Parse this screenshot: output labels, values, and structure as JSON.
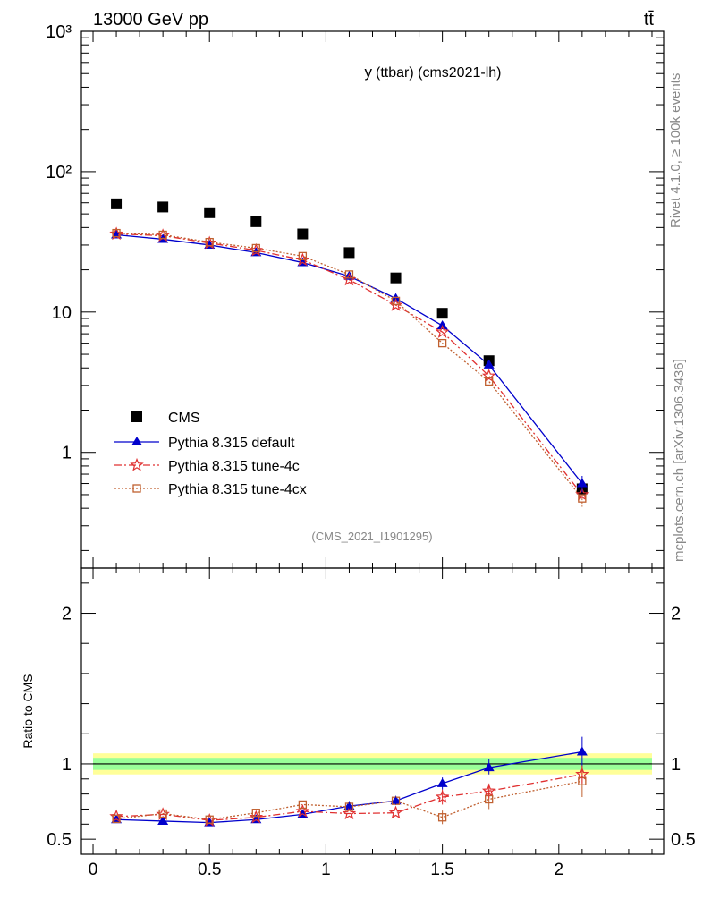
{
  "header": {
    "energy_label": "13000 GeV pp",
    "process_label": "tt̄",
    "plot_title_var": "y",
    "plot_title_rest": "(ttbar) (cms2021-lh)",
    "analysis_label": "(CMS_2021_I1901295)",
    "rivet_label": "Rivet 4.1.0, ≥ 100k events",
    "source_label": "mcplots.cern.ch [arXiv:1306.3436]"
  },
  "chart_data": [
    {
      "type": "scatter",
      "title": "y(ttbar) (cms2021-lh)",
      "xlabel": "",
      "ylabel": "",
      "yscale": "log",
      "xlim": [
        -0.05,
        2.45
      ],
      "ylim": [
        0.15,
        1000
      ],
      "ytick_labels": [
        "1",
        "10",
        "10²",
        "10³"
      ],
      "x": [
        0.1,
        0.3,
        0.5,
        0.7,
        0.9,
        1.1,
        1.3,
        1.5,
        1.7,
        2.1
      ],
      "legend_position": "middle-left",
      "series": [
        {
          "name": "CMS",
          "color": "#000000",
          "marker": "square",
          "line": "none",
          "values": [
            59,
            56,
            51,
            44,
            36,
            26.5,
            17.5,
            9.8,
            4.5,
            0.55
          ]
        },
        {
          "name": "Pythia 8.315 default",
          "color": "#0000cc",
          "marker": "triangle",
          "line": "solid",
          "values": [
            35.5,
            33,
            30,
            26.5,
            22.5,
            18,
            12.5,
            8,
            4.2,
            0.6
          ]
        },
        {
          "name": "Pythia 8.315 tune-4c",
          "color": "#e03030",
          "marker": "star",
          "line": "dashdot",
          "values": [
            36,
            35,
            31,
            27.5,
            23.5,
            17,
            11.2,
            7.2,
            3.5,
            0.5
          ]
        },
        {
          "name": "Pythia 8.315 tune-4cx",
          "color": "#c06030",
          "marker": "open-square",
          "line": "dotted",
          "values": [
            36.5,
            35.5,
            31.5,
            28.5,
            25,
            18.5,
            12,
            6,
            3.2,
            0.47
          ]
        }
      ]
    },
    {
      "type": "scatter",
      "title": "",
      "xlabel": "",
      "ylabel": "Ratio to CMS",
      "xlim": [
        -0.05,
        2.45
      ],
      "ylim": [
        0.4,
        2.3
      ],
      "x_tick_labels": [
        "0",
        "0.5",
        "1",
        "1.5",
        "2"
      ],
      "y_tick_labels": [
        "0.5",
        "1",
        "2"
      ],
      "x": [
        0.1,
        0.3,
        0.5,
        0.7,
        0.9,
        1.1,
        1.3,
        1.5,
        1.7,
        2.1
      ],
      "band_yellow": [
        0.93,
        1.07
      ],
      "band_green": [
        0.96,
        1.04
      ],
      "series": [
        {
          "name": "Pythia 8.315 default",
          "color": "#0000cc",
          "marker": "triangle",
          "values": [
            0.63,
            0.62,
            0.61,
            0.63,
            0.665,
            0.72,
            0.755,
            0.87,
            0.975,
            1.08
          ]
        },
        {
          "name": "Pythia 8.315 tune-4c",
          "color": "#e03030",
          "marker": "star",
          "values": [
            0.65,
            0.665,
            0.625,
            0.645,
            0.685,
            0.67,
            0.675,
            0.78,
            0.82,
            0.93
          ]
        },
        {
          "name": "Pythia 8.315 tune-4cx",
          "color": "#c06030",
          "marker": "open-square",
          "values": [
            0.635,
            0.67,
            0.63,
            0.675,
            0.73,
            0.715,
            0.755,
            0.645,
            0.765,
            0.885
          ]
        }
      ]
    }
  ]
}
